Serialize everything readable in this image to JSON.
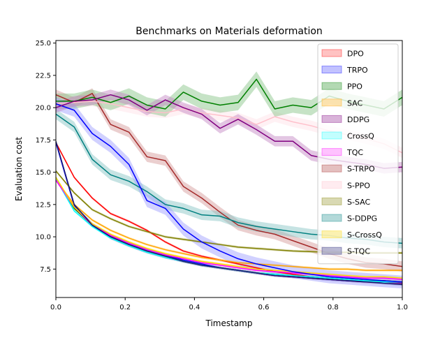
{
  "chart_data": {
    "type": "line",
    "title": "Benchmarks on Materials deformation",
    "xlabel": "Timestamp",
    "ylabel": "Evaluation cost",
    "xlim": [
      0,
      1
    ],
    "ylim": [
      5.3,
      25.2
    ],
    "x_ticks": [
      "0.0",
      "0.2",
      "0.4",
      "0.6",
      "0.8",
      "1.0"
    ],
    "y_ticks": [
      "7.5",
      "10.0",
      "12.5",
      "15.0",
      "17.5",
      "20.0",
      "22.5",
      "25.0"
    ],
    "grid": false,
    "legend_position": "top-right",
    "x": [
      0,
      0.053,
      0.105,
      0.158,
      0.211,
      0.263,
      0.316,
      0.368,
      0.421,
      0.474,
      0.526,
      0.579,
      0.632,
      0.684,
      0.737,
      0.789,
      0.842,
      0.895,
      0.947,
      1.0
    ],
    "series": [
      {
        "name": "DPO",
        "color": "#ff0000",
        "band_color": "#ff9999",
        "band": 0.1,
        "values": [
          17.3,
          14.6,
          13.0,
          11.8,
          11.2,
          10.5,
          9.6,
          8.9,
          8.5,
          8.2,
          7.9,
          7.6,
          7.3,
          7.1,
          6.9,
          6.8,
          6.7,
          6.6,
          6.6,
          6.5
        ]
      },
      {
        "name": "TRPO",
        "color": "#0000ff",
        "band_color": "#9999ff",
        "band": 0.1,
        "values": [
          17.3,
          12.4,
          11.0,
          10.1,
          9.5,
          9.0,
          8.6,
          8.2,
          7.9,
          7.6,
          7.4,
          7.2,
          7.0,
          6.9,
          6.8,
          6.7,
          6.6,
          6.6,
          6.5,
          6.5
        ]
      },
      {
        "name": "PPO",
        "color": "#008000",
        "band_color": "#80c080",
        "band": 0.1,
        "values": [
          14.6,
          12.2,
          10.9,
          10.0,
          9.4,
          8.9,
          8.5,
          8.1,
          7.8,
          7.6,
          7.4,
          7.2,
          7.1,
          7.0,
          6.9,
          6.8,
          6.7,
          6.6,
          6.6,
          6.5
        ]
      },
      {
        "name": "SAC",
        "color": "#ffa500",
        "band_color": "#ffd27f",
        "band": 0.1,
        "values": [
          14.4,
          12.5,
          11.3,
          10.5,
          9.9,
          9.4,
          9.0,
          8.7,
          8.4,
          8.2,
          8.0,
          7.9,
          7.8,
          7.7,
          7.6,
          7.5,
          7.5,
          7.4,
          7.4,
          7.4
        ]
      },
      {
        "name": "DDPG",
        "color": "#800080",
        "band_color": "#c080c0",
        "band": 0.1,
        "values": [
          14.4,
          12.3,
          10.9,
          9.9,
          9.3,
          8.8,
          8.4,
          8.1,
          7.8,
          7.6,
          7.4,
          7.2,
          7.0,
          6.9,
          6.8,
          6.7,
          6.6,
          6.5,
          6.5,
          6.4
        ]
      },
      {
        "name": "CrossQ",
        "color": "#00ffff",
        "band_color": "#99ffff",
        "band": 0.1,
        "values": [
          14.5,
          12.0,
          10.8,
          9.9,
          9.3,
          8.8,
          8.4,
          8.1,
          7.8,
          7.6,
          7.4,
          7.2,
          7.1,
          7.0,
          6.9,
          6.8,
          6.7,
          6.6,
          6.5,
          6.5
        ]
      },
      {
        "name": "TQC",
        "color": "#ff00ff",
        "band_color": "#ff99ff",
        "band": 0.1,
        "values": [
          14.4,
          12.3,
          10.9,
          10.1,
          9.5,
          9.0,
          8.6,
          8.3,
          8.0,
          7.8,
          7.6,
          7.4,
          7.3,
          7.2,
          7.1,
          7.0,
          6.9,
          6.8,
          6.8,
          6.7
        ]
      },
      {
        "name": "S-TRPO",
        "color": "#a52a2a",
        "band_color": "#d29595",
        "band": 0.4,
        "values": [
          21.0,
          20.4,
          21.1,
          18.7,
          18.1,
          16.2,
          15.9,
          13.9,
          13.0,
          11.9,
          10.9,
          10.5,
          10.2,
          9.7,
          9.2,
          8.7,
          8.3,
          8.0,
          7.9,
          7.7
        ]
      },
      {
        "name": "S-PPO",
        "color": "#ffc0cb",
        "band_color": "#ffe0e6",
        "band": 0.4,
        "values": [
          20.3,
          20.4,
          20.5,
          20.3,
          20.0,
          19.7,
          19.6,
          19.9,
          19.6,
          19.4,
          19.2,
          18.7,
          19.3,
          18.9,
          18.6,
          18.2,
          17.9,
          17.6,
          17.2,
          16.5
        ]
      },
      {
        "name": "S-SAC",
        "color": "#808000",
        "band_color": "#c0c080",
        "band": 0.1,
        "values": [
          15.1,
          13.4,
          12.1,
          11.4,
          10.8,
          10.4,
          10.0,
          9.8,
          9.6,
          9.4,
          9.2,
          9.1,
          9.0,
          8.9,
          8.85,
          8.8,
          8.8,
          8.75,
          8.75,
          8.75
        ]
      },
      {
        "name": "S-DDPG",
        "color": "#008080",
        "band_color": "#80c0c0",
        "band": 0.4,
        "values": [
          19.5,
          18.5,
          16.0,
          14.8,
          14.3,
          13.5,
          12.5,
          12.2,
          11.7,
          11.6,
          11.1,
          10.8,
          10.6,
          10.4,
          10.2,
          10.1,
          9.9,
          9.8,
          9.6,
          9.5
        ]
      },
      {
        "name": "S-CrossQ",
        "color": "#ffd700",
        "band_color": "#ffeb80",
        "band": 0.1,
        "values": [
          14.6,
          12.3,
          11.0,
          10.2,
          9.6,
          9.1,
          8.7,
          8.4,
          8.1,
          7.9,
          7.7,
          7.5,
          7.4,
          7.3,
          7.2,
          7.1,
          7.0,
          6.9,
          6.9,
          6.8
        ]
      },
      {
        "name": "S-TQC",
        "color": "#191970",
        "band_color": "#8c8cb8",
        "band": 0.1,
        "values": [
          17.4,
          12.5,
          10.9,
          10.0,
          9.4,
          8.9,
          8.5,
          8.1,
          7.8,
          7.6,
          7.4,
          7.2,
          7.0,
          6.9,
          6.8,
          6.7,
          6.6,
          6.5,
          6.4,
          6.3
        ]
      },
      {
        "name": "",
        "color": "#008000",
        "band_color": "#80c080",
        "band": 0.6,
        "legend": false,
        "values": [
          20.5,
          20.5,
          20.8,
          20.4,
          20.9,
          20.2,
          19.9,
          21.2,
          20.5,
          20.2,
          20.4,
          22.2,
          19.9,
          20.2,
          20.0,
          20.9,
          20.5,
          20.2,
          19.9,
          20.8
        ]
      },
      {
        "name": "",
        "color": "#0000ff",
        "band_color": "#9999ff",
        "band": 0.5,
        "legend": false,
        "values": [
          20.3,
          19.8,
          18.0,
          17.0,
          15.6,
          12.8,
          12.2,
          10.6,
          9.6,
          8.9,
          8.3,
          7.9,
          7.6,
          7.3,
          7.1,
          6.9,
          6.8,
          6.7,
          6.6,
          6.5
        ]
      },
      {
        "name": "",
        "color": "#800080",
        "band_color": "#c080c0",
        "band": 0.4,
        "legend": false,
        "values": [
          20.0,
          20.5,
          20.6,
          21.0,
          20.6,
          19.8,
          20.6,
          20.0,
          19.5,
          18.4,
          19.1,
          18.3,
          17.4,
          17.4,
          16.3,
          16.0,
          15.8,
          15.6,
          15.3,
          15.4
        ]
      }
    ]
  }
}
